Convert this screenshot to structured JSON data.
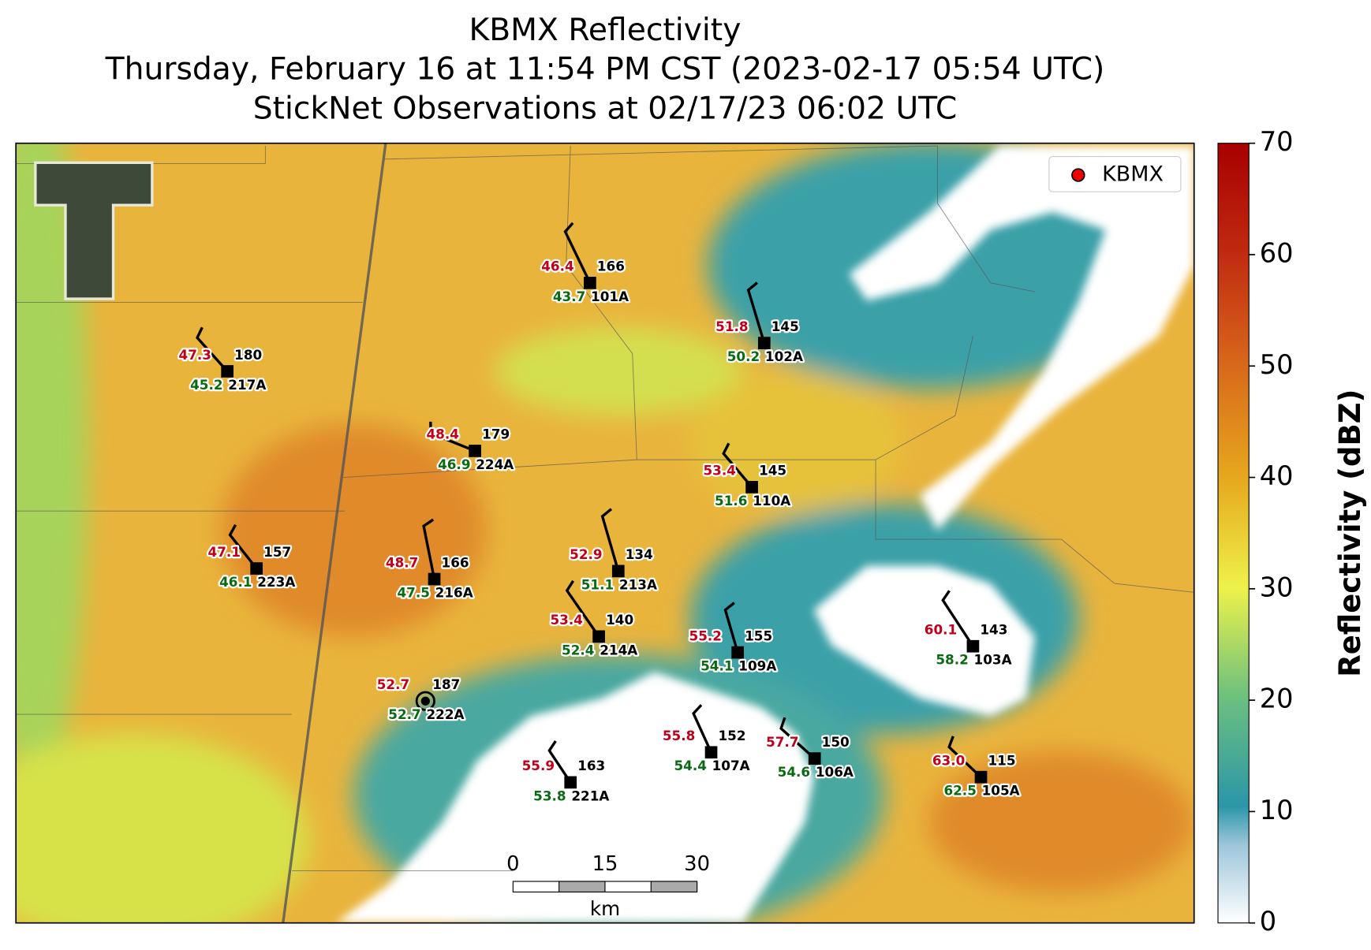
{
  "header": {
    "title": "KBMX Reflectivity",
    "subtitle": "Thursday, February 16 at 11:54 PM CST (2023-02-17 05:54 UTC)",
    "subtitle2": "StickNet Observations at 02/17/23 06:02 UTC"
  },
  "legend": {
    "label": "KBMX"
  },
  "colorbar": {
    "label": "Reflectivity (dBZ)",
    "ylim": [
      0,
      70
    ],
    "yticks": [
      0,
      10,
      20,
      30,
      40,
      50,
      60,
      70
    ]
  },
  "scale_bar": {
    "labels": [
      "0",
      "15",
      "30"
    ],
    "unit": "km"
  },
  "stations": [
    {
      "id": "101A",
      "value": "166",
      "temperature": "46.4",
      "dewpoint": "43.7"
    },
    {
      "id": "102A",
      "value": "145",
      "temperature": "51.8",
      "dewpoint": "50.2"
    },
    {
      "id": "217A",
      "value": "180",
      "temperature": "47.3",
      "dewpoint": "45.2"
    },
    {
      "id": "224A",
      "value": "179",
      "temperature": "48.4",
      "dewpoint": "46.9"
    },
    {
      "id": "110A",
      "value": "145",
      "temperature": "53.4",
      "dewpoint": "51.6"
    },
    {
      "id": "223A",
      "value": "157",
      "temperature": "47.1",
      "dewpoint": "46.1"
    },
    {
      "id": "216A",
      "value": "166",
      "temperature": "48.7",
      "dewpoint": "47.5"
    },
    {
      "id": "213A",
      "value": "134",
      "temperature": "52.9",
      "dewpoint": "51.1"
    },
    {
      "id": "214A",
      "value": "140",
      "temperature": "53.4",
      "dewpoint": "52.4"
    },
    {
      "id": "109A",
      "value": "155",
      "temperature": "55.2",
      "dewpoint": "54.1"
    },
    {
      "id": "103A",
      "value": "143",
      "temperature": "60.1",
      "dewpoint": "58.2"
    },
    {
      "id": "222A",
      "value": "187",
      "temperature": "52.7",
      "dewpoint": "52.7"
    },
    {
      "id": "107A",
      "value": "152",
      "temperature": "55.8",
      "dewpoint": "54.4"
    },
    {
      "id": "106A",
      "value": "150",
      "temperature": "57.7",
      "dewpoint": "54.6"
    },
    {
      "id": "105A",
      "value": "115",
      "temperature": "63.0",
      "dewpoint": "62.5"
    },
    {
      "id": "221A",
      "value": "163",
      "temperature": "55.9",
      "dewpoint": "53.8"
    }
  ]
}
